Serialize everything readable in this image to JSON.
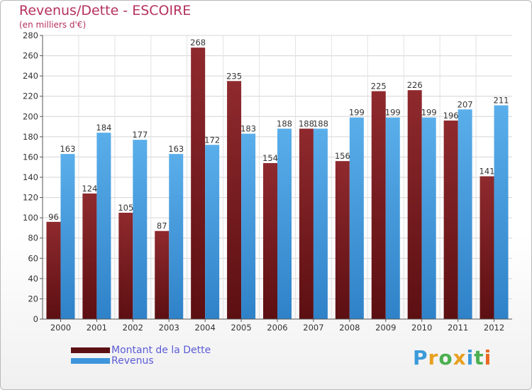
{
  "title": "Revenus/Dette - ESCOIRE",
  "subtitle": "(en milliers d'€)",
  "logo": {
    "letters": [
      "P",
      "r",
      "o",
      "x",
      "i",
      "t",
      "i"
    ],
    "colors": [
      "#3a9ad9",
      "#e8a020",
      "#4caf50",
      "#e8a020",
      "#3a9ad9",
      "#4caf50",
      "#e86a20"
    ]
  },
  "chart_data": {
    "type": "bar",
    "title": "Revenus/Dette - ESCOIRE",
    "subtitle": "(en milliers d'€)",
    "categories": [
      "2000",
      "2001",
      "2002",
      "2003",
      "2004",
      "2005",
      "2006",
      "2007",
      "2008",
      "2009",
      "2010",
      "2011",
      "2012"
    ],
    "series": [
      {
        "name": "Montant de la Dette",
        "color": "#7a1c1f",
        "values": [
          96,
          124,
          105,
          87,
          268,
          235,
          154,
          188,
          156,
          225,
          226,
          196,
          141
        ]
      },
      {
        "name": "Revenus",
        "color": "#3d95dc",
        "values": [
          163,
          184,
          177,
          163,
          172,
          183,
          188,
          188,
          199,
          199,
          199,
          207,
          211
        ]
      }
    ],
    "ylim": [
      0,
      280
    ],
    "yticks": [
      "0",
      "20",
      "40",
      "60",
      "80",
      "100",
      "120",
      "140",
      "160",
      "180",
      "200",
      "220",
      "240",
      "260",
      "280"
    ],
    "grid": true,
    "legend": "bottom-left"
  }
}
